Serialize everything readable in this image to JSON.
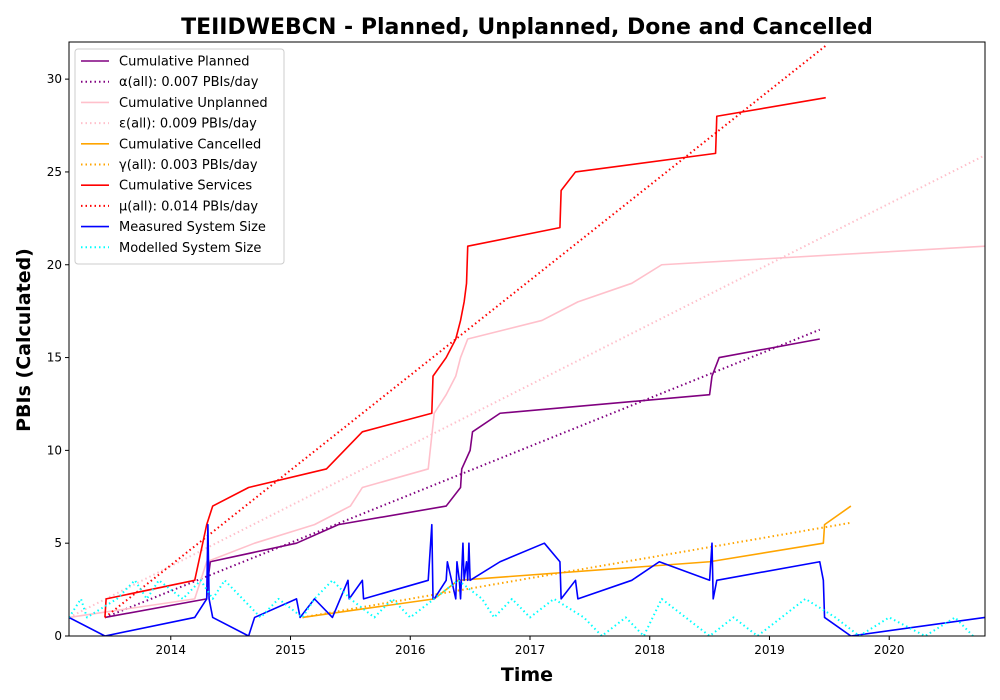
{
  "chart_data": {
    "type": "line",
    "title": "TEIIDWEBCN - Planned, Unplanned, Done  and Cancelled",
    "xlabel": "Time",
    "ylabel": "PBIs (Calculated)",
    "xlim": [
      2013.15,
      2020.8
    ],
    "ylim": [
      0,
      32
    ],
    "x_ticks": [
      2014,
      2015,
      2016,
      2017,
      2018,
      2019,
      2020
    ],
    "x_tick_labels": [
      "2014",
      "2015",
      "2016",
      "2017",
      "2018",
      "2019",
      "2020"
    ],
    "y_ticks": [
      0,
      5,
      10,
      15,
      20,
      25,
      30
    ],
    "y_tick_labels": [
      "0",
      "5",
      "10",
      "15",
      "20",
      "25",
      "30"
    ],
    "grid": false,
    "legend_position": "top-left",
    "series": [
      {
        "name": "Cumulative Planned",
        "color": "#800080",
        "style": "solid",
        "x": [
          2013.45,
          2014.3,
          2014.31,
          2014.33,
          2015.05,
          2015.4,
          2016.3,
          2016.42,
          2016.43,
          2016.5,
          2016.52,
          2016.75,
          2018.5,
          2018.52,
          2018.58,
          2019.42
        ],
        "y": [
          1,
          2,
          3,
          4,
          5,
          6,
          7,
          8,
          9,
          10,
          11,
          12,
          13,
          14,
          15,
          16
        ]
      },
      {
        "name": "α(all): 0.007 PBIs/day",
        "color": "#800080",
        "style": "dotted",
        "x": [
          2013.45,
          2019.42
        ],
        "y": [
          1,
          16.5
        ]
      },
      {
        "name": "Cumulative Unplanned",
        "color": "#ffc0cb",
        "style": "solid",
        "x": [
          2013.15,
          2014.2,
          2014.3,
          2014.7,
          2015.2,
          2015.5,
          2015.6,
          2016.15,
          2016.2,
          2016.3,
          2016.38,
          2016.42,
          2016.48,
          2017.1,
          2017.4,
          2017.85,
          2018.1,
          2020.8
        ],
        "y": [
          1,
          2,
          4,
          5,
          6,
          7,
          8,
          9,
          12,
          13,
          14,
          15,
          16,
          17,
          18,
          19,
          20,
          21
        ]
      },
      {
        "name": "ε(all): 0.009 PBIs/day",
        "color": "#ffc0cb",
        "style": "dotted",
        "x": [
          2013.15,
          2020.8
        ],
        "y": [
          1,
          25.9
        ]
      },
      {
        "name": "Cumulative Cancelled",
        "color": "#ffa500",
        "style": "solid",
        "x": [
          2015.1,
          2016.2,
          2016.4,
          2018.5,
          2019.45,
          2019.46,
          2019.68
        ],
        "y": [
          1,
          2,
          3,
          4,
          5,
          6,
          7
        ]
      },
      {
        "name": "γ(all): 0.003 PBIs/day",
        "color": "#ffa500",
        "style": "dotted",
        "x": [
          2015.1,
          2019.68
        ],
        "y": [
          1,
          6.1
        ]
      },
      {
        "name": "Cumulative Services",
        "color": "#ff0000",
        "style": "solid",
        "x": [
          2013.45,
          2013.46,
          2014.2,
          2014.3,
          2014.35,
          2014.65,
          2015.3,
          2015.6,
          2016.18,
          2016.19,
          2016.3,
          2016.38,
          2016.42,
          2016.45,
          2016.47,
          2016.48,
          2017.25,
          2017.26,
          2017.38,
          2018.55,
          2018.56,
          2019.47
        ],
        "y": [
          1,
          2,
          3,
          6,
          7,
          8,
          9,
          11,
          12,
          14,
          15,
          16,
          17,
          18,
          19,
          21,
          22,
          24,
          25,
          26,
          28,
          29
        ]
      },
      {
        "name": "μ(all): 0.014 PBIs/day",
        "color": "#ff0000",
        "style": "dotted",
        "x": [
          2013.45,
          2019.47
        ],
        "y": [
          1,
          31.8
        ]
      },
      {
        "name": "Measured System Size",
        "color": "#0000ff",
        "style": "solid",
        "x": [
          2013.15,
          2013.45,
          2014.2,
          2014.3,
          2014.31,
          2014.32,
          2014.35,
          2014.65,
          2014.7,
          2015.05,
          2015.08,
          2015.2,
          2015.35,
          2015.48,
          2015.49,
          2015.6,
          2015.61,
          2016.15,
          2016.18,
          2016.19,
          2016.2,
          2016.3,
          2016.31,
          2016.38,
          2016.39,
          2016.41,
          2016.42,
          2016.44,
          2016.45,
          2016.47,
          2016.48,
          2016.49,
          2016.5,
          2016.75,
          2017.12,
          2017.25,
          2017.26,
          2017.38,
          2017.4,
          2017.85,
          2018.08,
          2018.5,
          2018.52,
          2018.53,
          2018.56,
          2019.42,
          2019.45,
          2019.46,
          2019.68,
          2020.8
        ],
        "y": [
          1,
          0,
          1,
          2,
          6,
          2,
          1,
          0,
          1,
          2,
          1,
          2,
          1,
          3,
          2,
          3,
          2,
          3,
          6,
          2,
          2,
          3,
          4,
          2,
          4,
          3,
          2,
          5,
          3,
          4,
          3,
          5,
          3,
          4,
          5,
          4,
          2,
          3,
          2,
          3,
          4,
          3,
          5,
          2,
          3,
          4,
          3,
          1,
          0,
          1
        ]
      },
      {
        "name": "Modelled System Size",
        "color": "#00ffff",
        "style": "dotted",
        "x": [
          2013.15,
          2013.25,
          2013.3,
          2013.55,
          2013.7,
          2013.8,
          2013.9,
          2014.1,
          2014.25,
          2014.35,
          2014.45,
          2014.6,
          2014.75,
          2014.9,
          2015.1,
          2015.2,
          2015.35,
          2015.5,
          2015.7,
          2015.85,
          2016.0,
          2016.2,
          2016.4,
          2016.6,
          2016.7,
          2016.85,
          2017.0,
          2017.2,
          2017.45,
          2017.6,
          2017.8,
          2017.95,
          2018.1,
          2018.3,
          2018.5,
          2018.7,
          2018.9,
          2019.1,
          2019.3,
          2019.55,
          2019.75,
          2020.0,
          2020.3,
          2020.55,
          2020.7
        ],
        "y": [
          1,
          2,
          1,
          2,
          3,
          2,
          3,
          2,
          3,
          2,
          3,
          2,
          1,
          2,
          1,
          2,
          3,
          2,
          1,
          2,
          1,
          2,
          3,
          2,
          1,
          2,
          1,
          2,
          1,
          0,
          1,
          0,
          2,
          1,
          0,
          1,
          0,
          1,
          2,
          1,
          0,
          1,
          0,
          1,
          0
        ]
      }
    ]
  }
}
